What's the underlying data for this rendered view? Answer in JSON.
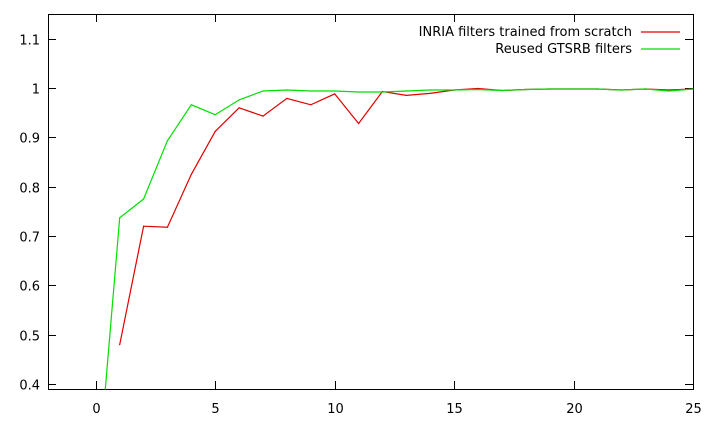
{
  "chart_data": {
    "type": "line",
    "title": "",
    "xlabel": "",
    "ylabel": "",
    "xlim": [
      -2,
      25
    ],
    "ylim": [
      0.39,
      1.15
    ],
    "xticks": [
      0,
      5,
      10,
      15,
      20,
      25
    ],
    "yticks": [
      0.4,
      0.5,
      0.6,
      0.7,
      0.8,
      0.9,
      1,
      1.1
    ],
    "xtick_labels": [
      "0",
      "5",
      "10",
      "15",
      "20",
      "25"
    ],
    "ytick_labels": [
      "0.4",
      "0.5",
      "0.6",
      "0.7",
      "0.8",
      "0.9",
      "1",
      "1.1"
    ],
    "grid": false,
    "legend_position": "top-right",
    "series": [
      {
        "name": "INRIA filters trained from scratch",
        "color": "#e00000",
        "x": [
          1,
          2,
          3,
          4,
          5,
          6,
          7,
          8,
          9,
          10,
          11,
          12,
          13,
          14,
          15,
          16,
          17,
          18,
          19,
          20,
          21,
          22,
          23,
          24,
          25
        ],
        "y": [
          0.48,
          0.72,
          0.718,
          0.825,
          0.912,
          0.96,
          0.943,
          0.979,
          0.966,
          0.988,
          0.928,
          0.993,
          0.985,
          0.989,
          0.996,
          0.999,
          0.995,
          0.997,
          0.998,
          0.998,
          0.998,
          0.996,
          0.998,
          0.996,
          0.998
        ]
      },
      {
        "name": "Reused GTSRB filters",
        "color": "#00e000",
        "x": [
          0.4,
          1,
          2,
          3,
          4,
          5,
          6,
          7,
          8,
          9,
          10,
          11,
          12,
          13,
          14,
          15,
          16,
          17,
          18,
          19,
          20,
          21,
          22,
          23,
          24,
          25
        ],
        "y": [
          0.39,
          0.737,
          0.775,
          0.893,
          0.966,
          0.946,
          0.976,
          0.994,
          0.996,
          0.994,
          0.994,
          0.992,
          0.992,
          0.994,
          0.996,
          0.996,
          0.997,
          0.995,
          0.997,
          0.998,
          0.998,
          0.998,
          0.996,
          0.998,
          0.994,
          0.998
        ]
      }
    ]
  }
}
